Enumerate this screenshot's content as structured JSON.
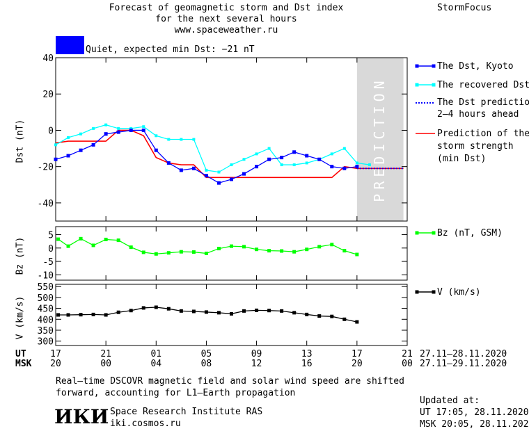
{
  "header": {
    "title_line1": "Forecast of geomagnetic storm and Dst index",
    "title_line2": "for the next several hours",
    "url": "www.spaceweather.ru",
    "brand": "StormFocus"
  },
  "status": {
    "label": "Quiet, expected min Dst: −21 nT",
    "color": "#0000ff"
  },
  "legend": {
    "dst_kyoto": "The Dst, Kyoto",
    "dst_recovered": "The recovered Dst",
    "dst_prediction_1": "The Dst prediction",
    "dst_prediction_2": "2–4 hours ahead",
    "storm_1": "Prediction of the",
    "storm_2": "storm strength",
    "storm_3": "(min Dst)",
    "bz": "Bz (nT, GSM)",
    "v": "V (km/s)"
  },
  "axis": {
    "dst_label": "Dst (nT)",
    "bz_label": "Bz (nT)",
    "v_label": "V (km/s)",
    "ut": "UT",
    "msk": "MSK",
    "ut_range": "27.11–28.11.2020",
    "msk_range": "27.11–29.11.2020",
    "prediction": "PREDICTION"
  },
  "footer": {
    "note_line1": "Real–time DSCOVR magnetic field and solar wind speed are shifted",
    "note_line2": "forward, accounting for L1–Earth propagation",
    "logo_text": "ИКИ",
    "institute": "Space Research Institute RAS",
    "site": "iki.cosmos.ru",
    "updated_label": "Updated at:",
    "updated_ut": "UT   17:05, 28.11.2020",
    "updated_msk": "MSK 20:05, 28.11.2020"
  },
  "colors": {
    "dst": "#0000ff",
    "recovered": "#00ffff",
    "storm": "#ff0000",
    "bz": "#00ff00",
    "v": "#000000",
    "prediction_bg": "#d9d9d9"
  },
  "chart_data": [
    {
      "type": "line",
      "title": "Forecast of geomagnetic storm and Dst index",
      "ylabel": "Dst (nT)",
      "ylim": [
        -50,
        40
      ],
      "yticks": [
        40,
        20,
        0,
        -20,
        -40
      ],
      "xlim": [
        17,
        45
      ],
      "x_tick_values": [
        17,
        21,
        25,
        29,
        33,
        37,
        41,
        45
      ],
      "x_ticks_ut": [
        "17",
        "21",
        "01",
        "05",
        "09",
        "13",
        "17",
        "21"
      ],
      "x_ticks_msk": [
        "20",
        "00",
        "04",
        "08",
        "12",
        "16",
        "20",
        "00"
      ],
      "prediction_region": [
        41,
        44.7
      ],
      "series": [
        {
          "name": "The Dst, Kyoto",
          "x": [
            17,
            18,
            19,
            20,
            21,
            22,
            23,
            24,
            25,
            26,
            27,
            28,
            29,
            30,
            31,
            32,
            33,
            34,
            35,
            36,
            37,
            38,
            39,
            40,
            41
          ],
          "values": [
            -16,
            -14,
            -11,
            -8,
            -2,
            -1,
            0,
            0,
            -11,
            -18,
            -22,
            -21,
            -25,
            -29,
            -27,
            -24,
            -20,
            -16,
            -15,
            -12,
            -14,
            -16,
            -20,
            -21,
            -20
          ]
        },
        {
          "name": "The recovered Dst",
          "x": [
            17,
            18,
            19,
            20,
            21,
            22,
            23,
            24,
            25,
            26,
            27,
            28,
            29,
            30,
            31,
            32,
            33,
            34,
            35,
            36,
            37,
            38,
            39,
            40,
            41,
            42
          ],
          "values": [
            -8,
            -4,
            -2,
            1,
            3,
            1,
            1,
            2,
            -3,
            -5,
            -5,
            -5,
            -22,
            -23,
            -19,
            -16,
            -13,
            -10,
            -19,
            -19,
            -18,
            -16,
            -13,
            -10,
            -18,
            -19
          ]
        },
        {
          "name": "The Dst prediction 2–4 hours ahead",
          "x": [
            41,
            44.7
          ],
          "values": [
            -21,
            -21
          ]
        },
        {
          "name": "Prediction of the storm strength (min Dst)",
          "x": [
            17,
            18,
            19,
            20,
            21,
            22,
            23,
            24,
            25,
            26,
            27,
            28,
            29,
            30,
            31,
            32,
            33,
            34,
            35,
            36,
            37,
            38,
            39,
            40,
            41,
            42,
            43,
            44.7
          ],
          "values": [
            -7,
            -6,
            -6,
            -6,
            -6,
            0,
            0,
            -3,
            -15,
            -18,
            -19,
            -19,
            -26,
            -26,
            -26,
            -26,
            -26,
            -26,
            -26,
            -26,
            -26,
            -26,
            -26,
            -20,
            -21,
            -21,
            -21,
            -21
          ]
        }
      ]
    },
    {
      "type": "line",
      "ylabel": "Bz (nT)",
      "ylim": [
        -12,
        8
      ],
      "yticks": [
        5,
        0,
        -5,
        -10
      ],
      "xlim": [
        17,
        45
      ],
      "series": [
        {
          "name": "Bz (nT, GSM)",
          "x": [
            17.2,
            18,
            19,
            20,
            21,
            22,
            23,
            24,
            25,
            26,
            27,
            28,
            29,
            30,
            31,
            32,
            33,
            34,
            35,
            36,
            37,
            38,
            39,
            40,
            41
          ],
          "values": [
            3.3,
            0.7,
            3.5,
            1.0,
            3.2,
            2.9,
            0.3,
            -1.6,
            -2.2,
            -1.8,
            -1.4,
            -1.5,
            -2.0,
            -0.2,
            0.7,
            0.5,
            -0.5,
            -1.0,
            -1.1,
            -1.4,
            -0.5,
            0.5,
            1.3,
            -1.0,
            -2.4
          ]
        }
      ]
    },
    {
      "type": "line",
      "ylabel": "V (km/s)",
      "ylim": [
        280,
        560
      ],
      "yticks": [
        550,
        500,
        450,
        400,
        350,
        300
      ],
      "xlim": [
        17,
        45
      ],
      "series": [
        {
          "name": "V (km/s)",
          "x": [
            17.2,
            18,
            19,
            20,
            21,
            22,
            23,
            24,
            25,
            26,
            27,
            28,
            29,
            30,
            31,
            32,
            33,
            34,
            35,
            36,
            37,
            38,
            39,
            40,
            41
          ],
          "values": [
            420,
            420,
            421,
            422,
            420,
            432,
            440,
            452,
            455,
            448,
            438,
            436,
            433,
            430,
            425,
            438,
            441,
            440,
            438,
            430,
            422,
            415,
            413,
            400,
            388
          ]
        }
      ]
    }
  ]
}
